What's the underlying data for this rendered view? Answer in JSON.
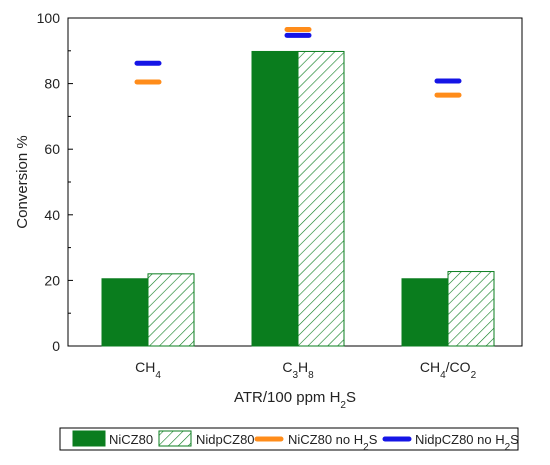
{
  "chart_data": {
    "type": "bar",
    "categories": [
      {
        "base": "CH",
        "sub": "4",
        "rest": "",
        "sub2": ""
      },
      {
        "base": "C",
        "sub": "3",
        "rest": "H",
        "sub2": "8"
      },
      {
        "base": "CH",
        "sub": "4",
        "rest": "/CO",
        "sub2": "2"
      }
    ],
    "series": [
      {
        "name": "NiCZ80",
        "values": [
          20.5,
          89.8,
          20.5
        ],
        "color": "#0a7d1e",
        "style": "solid"
      },
      {
        "name": "NidpCZ80",
        "values": [
          22.0,
          89.8,
          22.7
        ],
        "color": "#0a7d1e",
        "style": "hatched"
      }
    ],
    "reference_markers": [
      {
        "name": "NiCZ80 no H2S",
        "name_base": "NiCZ80 no H",
        "name_sub": "2",
        "name_rest": "S",
        "values": [
          80.5,
          96.5,
          76.5
        ],
        "color": "#ff8c1a"
      },
      {
        "name": "NidpCZ80 no H2S",
        "name_base": "NidpCZ80 no H",
        "name_sub": "2",
        "name_rest": "S",
        "values": [
          86.2,
          94.7,
          80.8
        ],
        "color": "#1515e6"
      }
    ],
    "ylabel": "Conversion %",
    "xlabel": {
      "base": "ATR/100 ppm H",
      "sub": "2",
      "rest": "S"
    },
    "ylim": [
      0,
      100
    ],
    "yticks": [
      0,
      20,
      40,
      60,
      80,
      100
    ],
    "grid": false,
    "legend_position": "bottom"
  }
}
